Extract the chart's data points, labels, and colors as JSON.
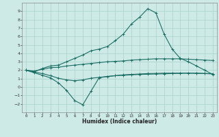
{
  "xlabel": "Humidex (Indice chaleur)",
  "bg_color": "#ceeae7",
  "grid_color": "#aed4d0",
  "line_color": "#1a6e64",
  "xlim": [
    -0.5,
    23.5
  ],
  "ylim": [
    -3,
    10
  ],
  "xticks": [
    0,
    1,
    2,
    3,
    4,
    5,
    6,
    7,
    8,
    9,
    10,
    11,
    12,
    13,
    14,
    15,
    16,
    17,
    18,
    19,
    20,
    21,
    22,
    23
  ],
  "yticks": [
    -2,
    -1,
    0,
    1,
    2,
    3,
    4,
    5,
    6,
    7,
    8,
    9
  ],
  "line1_x": [
    0,
    1,
    2,
    3,
    4,
    5,
    6,
    7,
    8,
    9,
    10,
    11,
    12,
    13,
    14,
    15,
    16,
    17,
    18,
    19,
    20,
    21,
    22,
    23
  ],
  "line1_y": [
    2.0,
    1.8,
    2.2,
    2.5,
    2.6,
    3.0,
    3.4,
    3.8,
    4.3,
    4.5,
    4.8,
    5.5,
    6.3,
    7.5,
    8.3,
    9.3,
    8.8,
    6.3,
    4.5,
    3.4,
    3.0,
    2.5,
    2.0,
    1.5
  ],
  "line2_x": [
    0,
    1,
    2,
    3,
    4,
    5,
    6,
    7,
    8,
    9,
    10,
    11,
    12,
    13,
    14,
    15,
    16,
    17,
    18,
    19,
    20,
    21,
    22,
    23
  ],
  "line2_y": [
    2.0,
    1.9,
    2.1,
    2.3,
    2.35,
    2.5,
    2.6,
    2.7,
    2.8,
    2.9,
    3.0,
    3.05,
    3.1,
    3.2,
    3.25,
    3.3,
    3.35,
    3.35,
    3.35,
    3.35,
    3.3,
    3.25,
    3.2,
    3.15
  ],
  "line3_x": [
    0,
    1,
    2,
    3,
    4,
    5,
    6,
    7,
    8,
    9,
    10,
    11,
    12,
    13,
    14,
    15,
    16,
    17,
    18,
    19,
    20,
    21,
    22,
    23
  ],
  "line3_y": [
    2.0,
    1.7,
    1.4,
    1.1,
    0.5,
    -0.4,
    -1.6,
    -2.1,
    -0.5,
    1.1,
    1.25,
    1.35,
    1.45,
    1.5,
    1.55,
    1.6,
    1.62,
    1.65,
    1.65,
    1.65,
    1.65,
    1.62,
    1.6,
    1.55
  ],
  "line4_x": [
    0,
    1,
    2,
    3,
    4,
    5,
    6,
    7,
    8,
    9,
    10,
    11,
    12,
    13,
    14,
    15,
    16,
    17,
    18,
    19,
    20,
    21,
    22,
    23
  ],
  "line4_y": [
    2.0,
    1.8,
    1.6,
    1.35,
    1.05,
    0.85,
    0.75,
    0.85,
    1.05,
    1.15,
    1.25,
    1.35,
    1.4,
    1.45,
    1.5,
    1.52,
    1.55,
    1.57,
    1.6,
    1.63,
    1.65,
    1.65,
    1.62,
    1.58
  ],
  "xlabel_fontsize": 5.5,
  "tick_labelsize": 4.5
}
